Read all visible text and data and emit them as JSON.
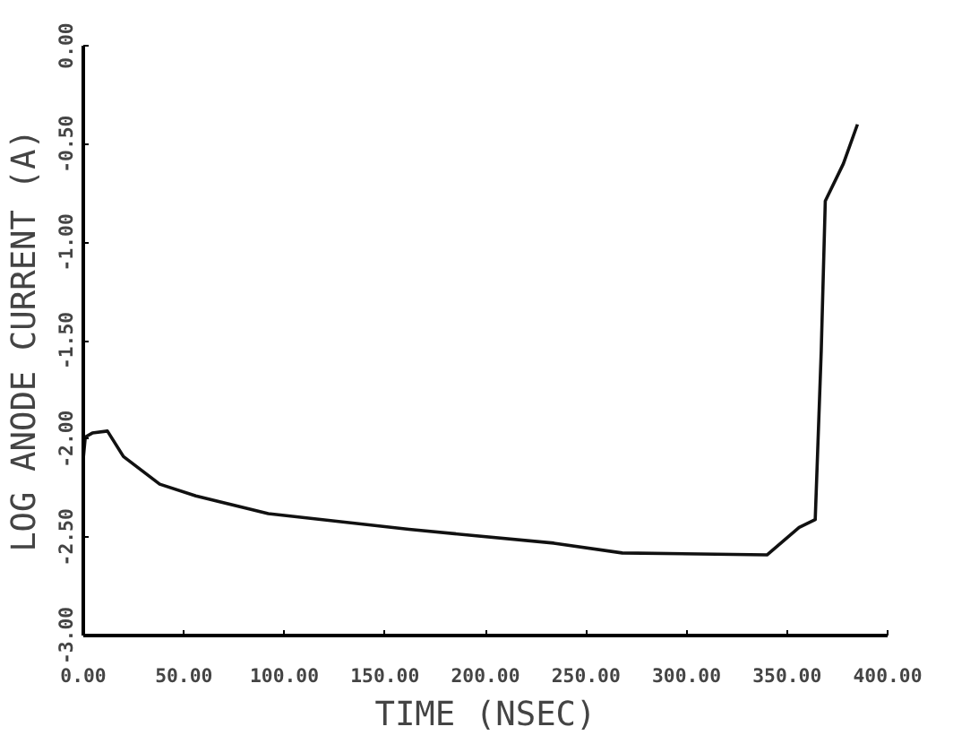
{
  "chart_data": {
    "type": "line",
    "xlabel": "TIME (NSEC)",
    "ylabel": "LOG ANODE CURRENT (A)",
    "x": [
      0,
      1,
      4.5,
      12,
      20,
      38,
      56,
      92,
      162,
      234,
      268,
      340,
      356,
      364,
      367,
      369,
      378,
      385
    ],
    "series": [
      {
        "color": "#111111",
        "values": [
          -2.1,
          -1.99,
          -1.97,
          -1.96,
          -2.09,
          -2.23,
          -2.29,
          -2.38,
          -2.46,
          -2.53,
          -2.58,
          -2.59,
          -2.45,
          -2.41,
          -1.55,
          -0.79,
          -0.6,
          -0.4
        ]
      }
    ],
    "xlim": [
      0,
      400
    ],
    "ylim": [
      -3,
      0
    ],
    "xticks": [
      {
        "value": 0,
        "label": "0.00"
      },
      {
        "value": 50,
        "label": "50.00"
      },
      {
        "value": 100,
        "label": "100.00"
      },
      {
        "value": 150,
        "label": "150.00"
      },
      {
        "value": 200,
        "label": "200.00"
      },
      {
        "value": 250,
        "label": "250.00"
      },
      {
        "value": 300,
        "label": "300.00"
      },
      {
        "value": 350,
        "label": "350.00"
      },
      {
        "value": 400,
        "label": "400.00"
      }
    ],
    "yticks": [
      {
        "value": -3,
        "label": "-3.00"
      },
      {
        "value": -2.5,
        "label": "-2.50"
      },
      {
        "value": -2,
        "label": "-2.00"
      },
      {
        "value": -1.5,
        "label": "-1.50"
      },
      {
        "value": -1,
        "label": "-1.00"
      },
      {
        "value": -0.5,
        "label": "-0.50"
      },
      {
        "value": 0,
        "label": "0.00"
      }
    ],
    "grid": false
  }
}
